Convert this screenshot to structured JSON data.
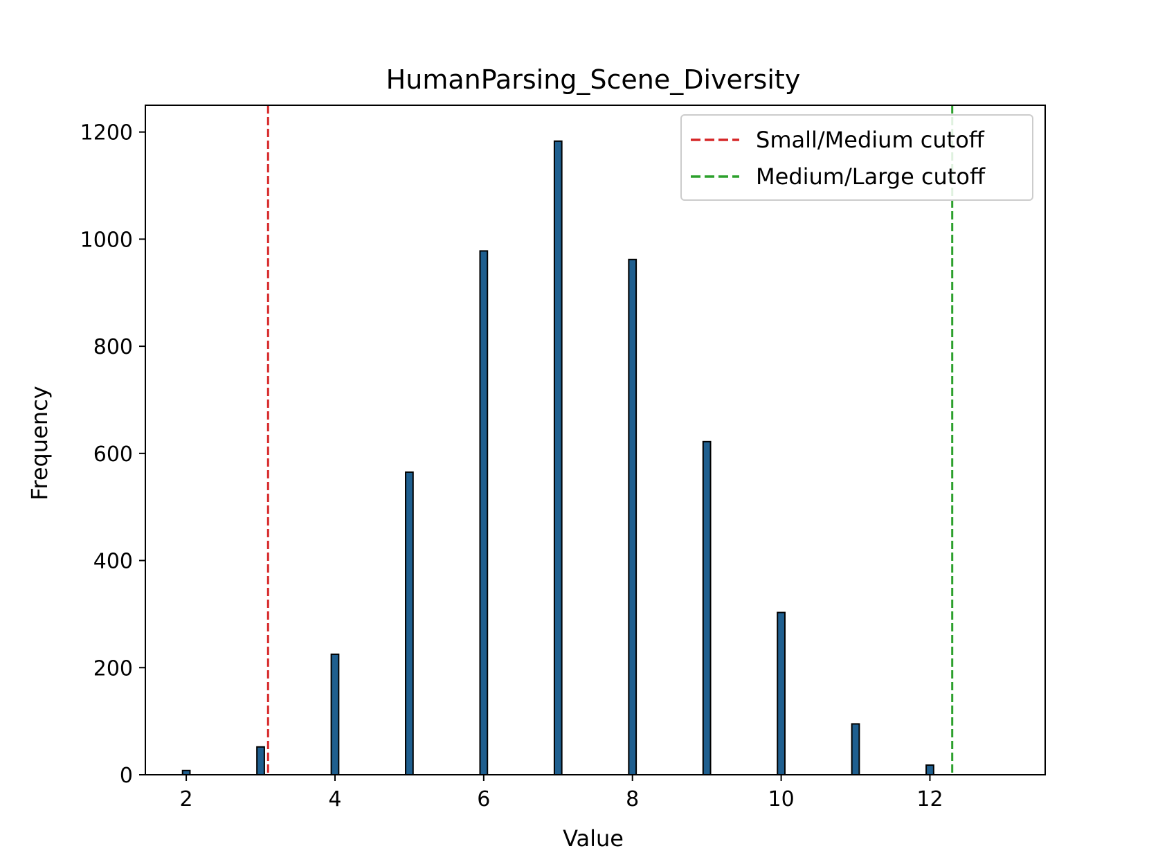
{
  "chart_data": {
    "type": "bar",
    "title": "HumanParsing_Scene_Diversity",
    "xlabel": "Value",
    "ylabel": "Frequency",
    "xlim": [
      1.45,
      13.55
    ],
    "ylim": [
      0,
      1200
    ],
    "x_ticks": [
      2,
      4,
      6,
      8,
      10,
      12
    ],
    "y_ticks": [
      0,
      200,
      400,
      600,
      800,
      1000,
      1200
    ],
    "bar_width": 0.1,
    "bars": [
      {
        "x": 2,
        "value": 8
      },
      {
        "x": 3,
        "value": 52
      },
      {
        "x": 4,
        "value": 225
      },
      {
        "x": 5,
        "value": 565
      },
      {
        "x": 6,
        "value": 978
      },
      {
        "x": 7,
        "value": 1183
      },
      {
        "x": 8,
        "value": 962
      },
      {
        "x": 9,
        "value": 622
      },
      {
        "x": 10,
        "value": 303
      },
      {
        "x": 11,
        "value": 95
      },
      {
        "x": 12,
        "value": 18
      }
    ],
    "cutoffs": [
      {
        "name": "Small/Medium cutoff",
        "x": 3.1,
        "color": "#d62728",
        "style": "dashed"
      },
      {
        "name": "Medium/Large cutoff",
        "x": 12.3,
        "color": "#2ca02c",
        "style": "dashed"
      }
    ],
    "bar_color": "#1f5f8f",
    "bar_edge_color": "#000000",
    "grid": false,
    "legend_position": "top-right"
  }
}
